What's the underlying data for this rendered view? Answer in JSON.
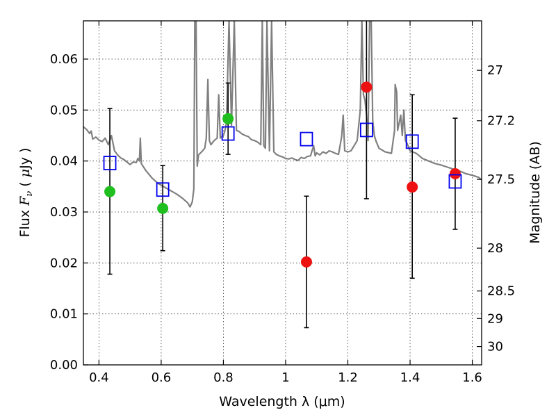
{
  "chart_data": {
    "type": "scatter",
    "xlabel": "Wavelength  λ (μm)",
    "ylabel": "Flux  F_ν  ( μJy )",
    "y2label": "Magnitude (AB)",
    "xlim": [
      0.35,
      1.63
    ],
    "ylim": [
      0.0,
      0.0675
    ],
    "grid": true,
    "x_ticks": [
      0.4,
      0.6,
      0.8,
      1.0,
      1.2,
      1.4,
      1.6
    ],
    "x_tick_labels": [
      "0.4",
      "0.6",
      "0.8",
      "1",
      "1.2",
      "1.4",
      "1.6"
    ],
    "y_ticks": [
      0.0,
      0.01,
      0.02,
      0.03,
      0.04,
      0.05,
      0.06
    ],
    "y_tick_labels": [
      "0.00",
      "0.01",
      "0.02",
      "0.03",
      "0.04",
      "0.05",
      "0.06"
    ],
    "y2_ticks": [
      {
        "label": "27",
        "flux": 0.0578
      },
      {
        "label": "27.2",
        "flux": 0.0479
      },
      {
        "label": "27.5",
        "flux": 0.0364
      },
      {
        "label": "28",
        "flux": 0.0229
      },
      {
        "label": "28.5",
        "flux": 0.0145
      },
      {
        "label": "29",
        "flux": 0.0091
      },
      {
        "label": "30",
        "flux": 0.0036
      }
    ],
    "colors": {
      "model": "#808080",
      "green_points": "#1fbf1f",
      "red_points": "#ee1111",
      "squares": "#0000ee",
      "errorbars": "#000000"
    },
    "model_spectrum": [
      [
        0.35,
        0.0467
      ],
      [
        0.36,
        0.0462
      ],
      [
        0.37,
        0.0454
      ],
      [
        0.375,
        0.0459
      ],
      [
        0.38,
        0.0443
      ],
      [
        0.39,
        0.0447
      ],
      [
        0.4,
        0.0441
      ],
      [
        0.41,
        0.0438
      ],
      [
        0.42,
        0.0445
      ],
      [
        0.43,
        0.0432
      ],
      [
        0.44,
        0.045
      ],
      [
        0.45,
        0.042
      ],
      [
        0.46,
        0.0412
      ],
      [
        0.47,
        0.0406
      ],
      [
        0.48,
        0.0403
      ],
      [
        0.49,
        0.0398
      ],
      [
        0.5,
        0.0393
      ],
      [
        0.51,
        0.0398
      ],
      [
        0.52,
        0.0397
      ],
      [
        0.525,
        0.0405
      ],
      [
        0.53,
        0.04
      ],
      [
        0.533,
        0.0445
      ],
      [
        0.536,
        0.0395
      ],
      [
        0.55,
        0.0382
      ],
      [
        0.57,
        0.0367
      ],
      [
        0.59,
        0.0356
      ],
      [
        0.61,
        0.0349
      ],
      [
        0.63,
        0.0342
      ],
      [
        0.65,
        0.0335
      ],
      [
        0.67,
        0.0326
      ],
      [
        0.685,
        0.0318
      ],
      [
        0.693,
        0.031
      ],
      [
        0.7,
        0.032
      ],
      [
        0.705,
        0.0345
      ],
      [
        0.708,
        0.0675
      ],
      [
        0.712,
        0.0675
      ],
      [
        0.716,
        0.039
      ],
      [
        0.72,
        0.0412
      ],
      [
        0.73,
        0.0418
      ],
      [
        0.74,
        0.0425
      ],
      [
        0.745,
        0.0445
      ],
      [
        0.75,
        0.056
      ],
      [
        0.755,
        0.044
      ],
      [
        0.76,
        0.0432
      ],
      [
        0.77,
        0.044
      ],
      [
        0.78,
        0.0445
      ],
      [
        0.785,
        0.053
      ],
      [
        0.79,
        0.0445
      ],
      [
        0.8,
        0.045
      ],
      [
        0.805,
        0.046
      ],
      [
        0.81,
        0.0475
      ],
      [
        0.818,
        0.0675
      ],
      [
        0.826,
        0.047
      ],
      [
        0.835,
        0.0675
      ],
      [
        0.842,
        0.046
      ],
      [
        0.85,
        0.0458
      ],
      [
        0.86,
        0.0453
      ],
      [
        0.87,
        0.045
      ],
      [
        0.88,
        0.0448
      ],
      [
        0.89,
        0.0442
      ],
      [
        0.9,
        0.044
      ],
      [
        0.91,
        0.0437
      ],
      [
        0.92,
        0.0432
      ],
      [
        0.925,
        0.0675
      ],
      [
        0.93,
        0.043
      ],
      [
        0.935,
        0.0425
      ],
      [
        0.94,
        0.0675
      ],
      [
        0.948,
        0.042
      ],
      [
        0.955,
        0.0675
      ],
      [
        0.962,
        0.0418
      ],
      [
        0.97,
        0.0413
      ],
      [
        0.98,
        0.041
      ],
      [
        0.99,
        0.0408
      ],
      [
        1.0,
        0.0405
      ],
      [
        1.01,
        0.0404
      ],
      [
        1.02,
        0.0406
      ],
      [
        1.03,
        0.0403
      ],
      [
        1.04,
        0.0401
      ],
      [
        1.05,
        0.0407
      ],
      [
        1.06,
        0.0405
      ],
      [
        1.07,
        0.0409
      ],
      [
        1.08,
        0.041
      ],
      [
        1.085,
        0.042
      ],
      [
        1.09,
        0.043
      ],
      [
        1.095,
        0.041
      ],
      [
        1.1,
        0.0416
      ],
      [
        1.11,
        0.0412
      ],
      [
        1.12,
        0.0418
      ],
      [
        1.13,
        0.0415
      ],
      [
        1.14,
        0.042
      ],
      [
        1.15,
        0.0418
      ],
      [
        1.16,
        0.0415
      ],
      [
        1.17,
        0.0413
      ],
      [
        1.18,
        0.0448
      ],
      [
        1.185,
        0.049
      ],
      [
        1.19,
        0.042
      ],
      [
        1.2,
        0.0418
      ],
      [
        1.21,
        0.042
      ],
      [
        1.22,
        0.043
      ],
      [
        1.23,
        0.044
      ],
      [
        1.24,
        0.05
      ],
      [
        1.245,
        0.0675
      ],
      [
        1.25,
        0.053
      ],
      [
        1.255,
        0.052
      ],
      [
        1.26,
        0.049
      ],
      [
        1.265,
        0.044
      ],
      [
        1.27,
        0.0675
      ],
      [
        1.275,
        0.0675
      ],
      [
        1.28,
        0.048
      ],
      [
        1.285,
        0.045
      ],
      [
        1.29,
        0.044
      ],
      [
        1.3,
        0.0425
      ],
      [
        1.32,
        0.0418
      ],
      [
        1.34,
        0.0415
      ],
      [
        1.35,
        0.046
      ],
      [
        1.352,
        0.055
      ],
      [
        1.357,
        0.0535
      ],
      [
        1.36,
        0.046
      ],
      [
        1.37,
        0.049
      ],
      [
        1.375,
        0.045
      ],
      [
        1.38,
        0.05
      ],
      [
        1.385,
        0.044
      ],
      [
        1.39,
        0.0435
      ],
      [
        1.4,
        0.042
      ],
      [
        1.42,
        0.0415
      ],
      [
        1.44,
        0.0405
      ],
      [
        1.46,
        0.04
      ],
      [
        1.48,
        0.0395
      ],
      [
        1.5,
        0.0392
      ],
      [
        1.52,
        0.0388
      ],
      [
        1.54,
        0.0384
      ],
      [
        1.56,
        0.038
      ],
      [
        1.58,
        0.0375
      ],
      [
        1.6,
        0.0372
      ],
      [
        1.62,
        0.0368
      ],
      [
        1.63,
        0.0363
      ]
    ],
    "error_bars": [
      {
        "x": 0.435,
        "low": 0.0178,
        "high": 0.0503
      },
      {
        "x": 0.605,
        "low": 0.0224,
        "high": 0.0391
      },
      {
        "x": 0.815,
        "low": 0.0413,
        "high": 0.0553
      },
      {
        "x": 1.067,
        "low": 0.0073,
        "high": 0.0331
      },
      {
        "x": 1.26,
        "low": 0.0326,
        "high": 0.0675
      },
      {
        "x": 1.407,
        "low": 0.017,
        "high": 0.053
      },
      {
        "x": 1.545,
        "low": 0.0266,
        "high": 0.0484
      }
    ],
    "green_points": [
      {
        "x": 0.435,
        "y": 0.034
      },
      {
        "x": 0.605,
        "y": 0.0307
      },
      {
        "x": 0.815,
        "y": 0.0483
      }
    ],
    "red_points": [
      {
        "x": 1.067,
        "y": 0.0202
      },
      {
        "x": 1.26,
        "y": 0.0545
      },
      {
        "x": 1.407,
        "y": 0.0349
      },
      {
        "x": 1.545,
        "y": 0.0375
      }
    ],
    "squares": [
      {
        "x": 0.435,
        "y": 0.0396
      },
      {
        "x": 0.605,
        "y": 0.0344
      },
      {
        "x": 0.815,
        "y": 0.0454
      },
      {
        "x": 1.067,
        "y": 0.0443
      },
      {
        "x": 1.26,
        "y": 0.0461
      },
      {
        "x": 1.407,
        "y": 0.0438
      },
      {
        "x": 1.545,
        "y": 0.036
      }
    ]
  }
}
